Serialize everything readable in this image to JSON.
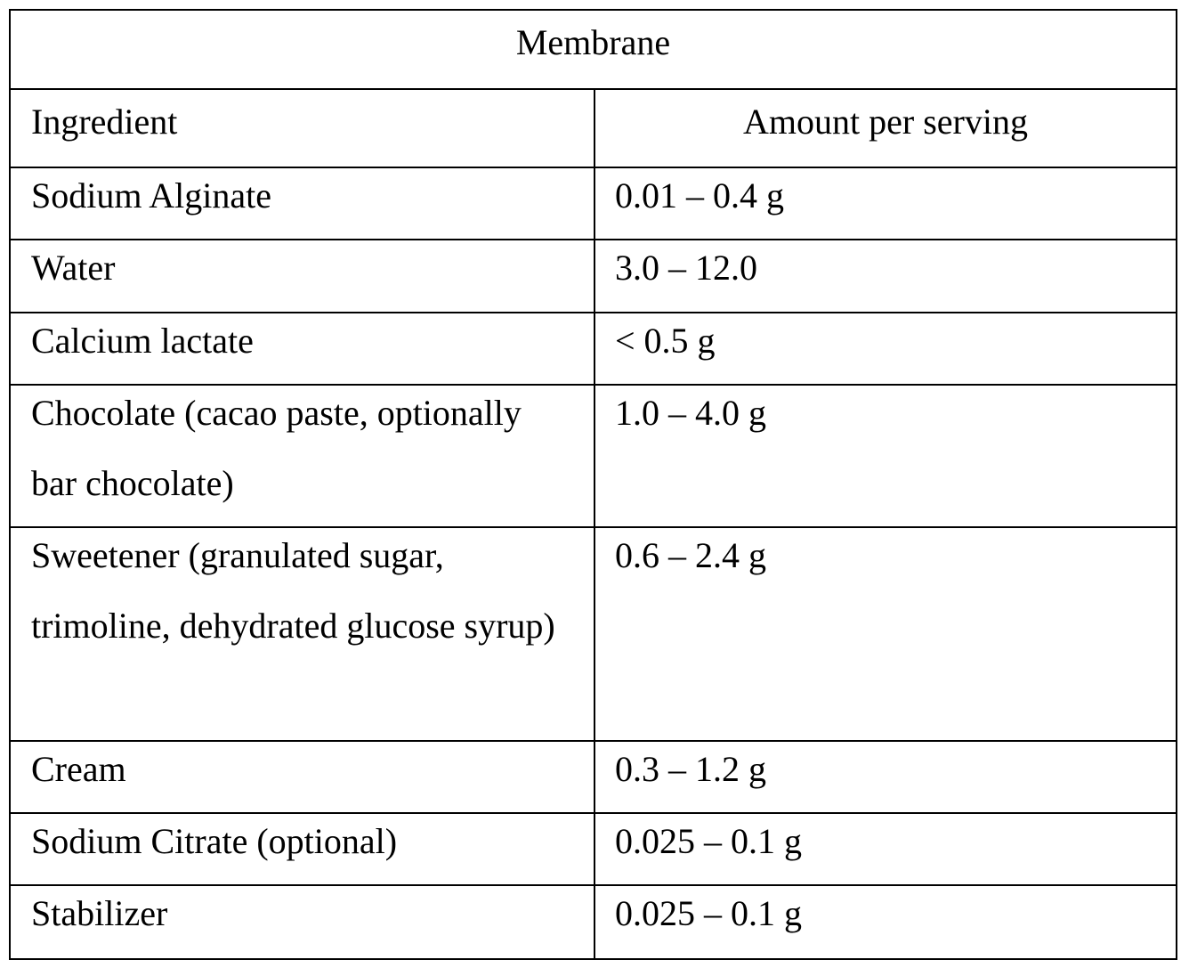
{
  "title": "Membrane",
  "table": {
    "header": [
      "Ingredient",
      "Amount per serving"
    ],
    "rows": [
      [
        "Sodium Alginate",
        "0.01 – 0.4 g"
      ],
      [
        "Water",
        "3.0 – 12.0"
      ],
      [
        "Calcium lactate",
        "< 0.5 g"
      ],
      [
        "Chocolate (cacao paste, optionally bar chocolate)",
        "1.0 – 4.0 g"
      ],
      [
        "Sweetener (granulated sugar, trimoline, dehydrated glucose syrup)",
        "0.6 – 2.4 g"
      ],
      [
        "Cream",
        "0.3 – 1.2 g"
      ],
      [
        "Sodium Citrate (optional)",
        "0.025 – 0.1 g"
      ],
      [
        "Stabilizer",
        "0.025 – 0.1 g"
      ]
    ]
  }
}
